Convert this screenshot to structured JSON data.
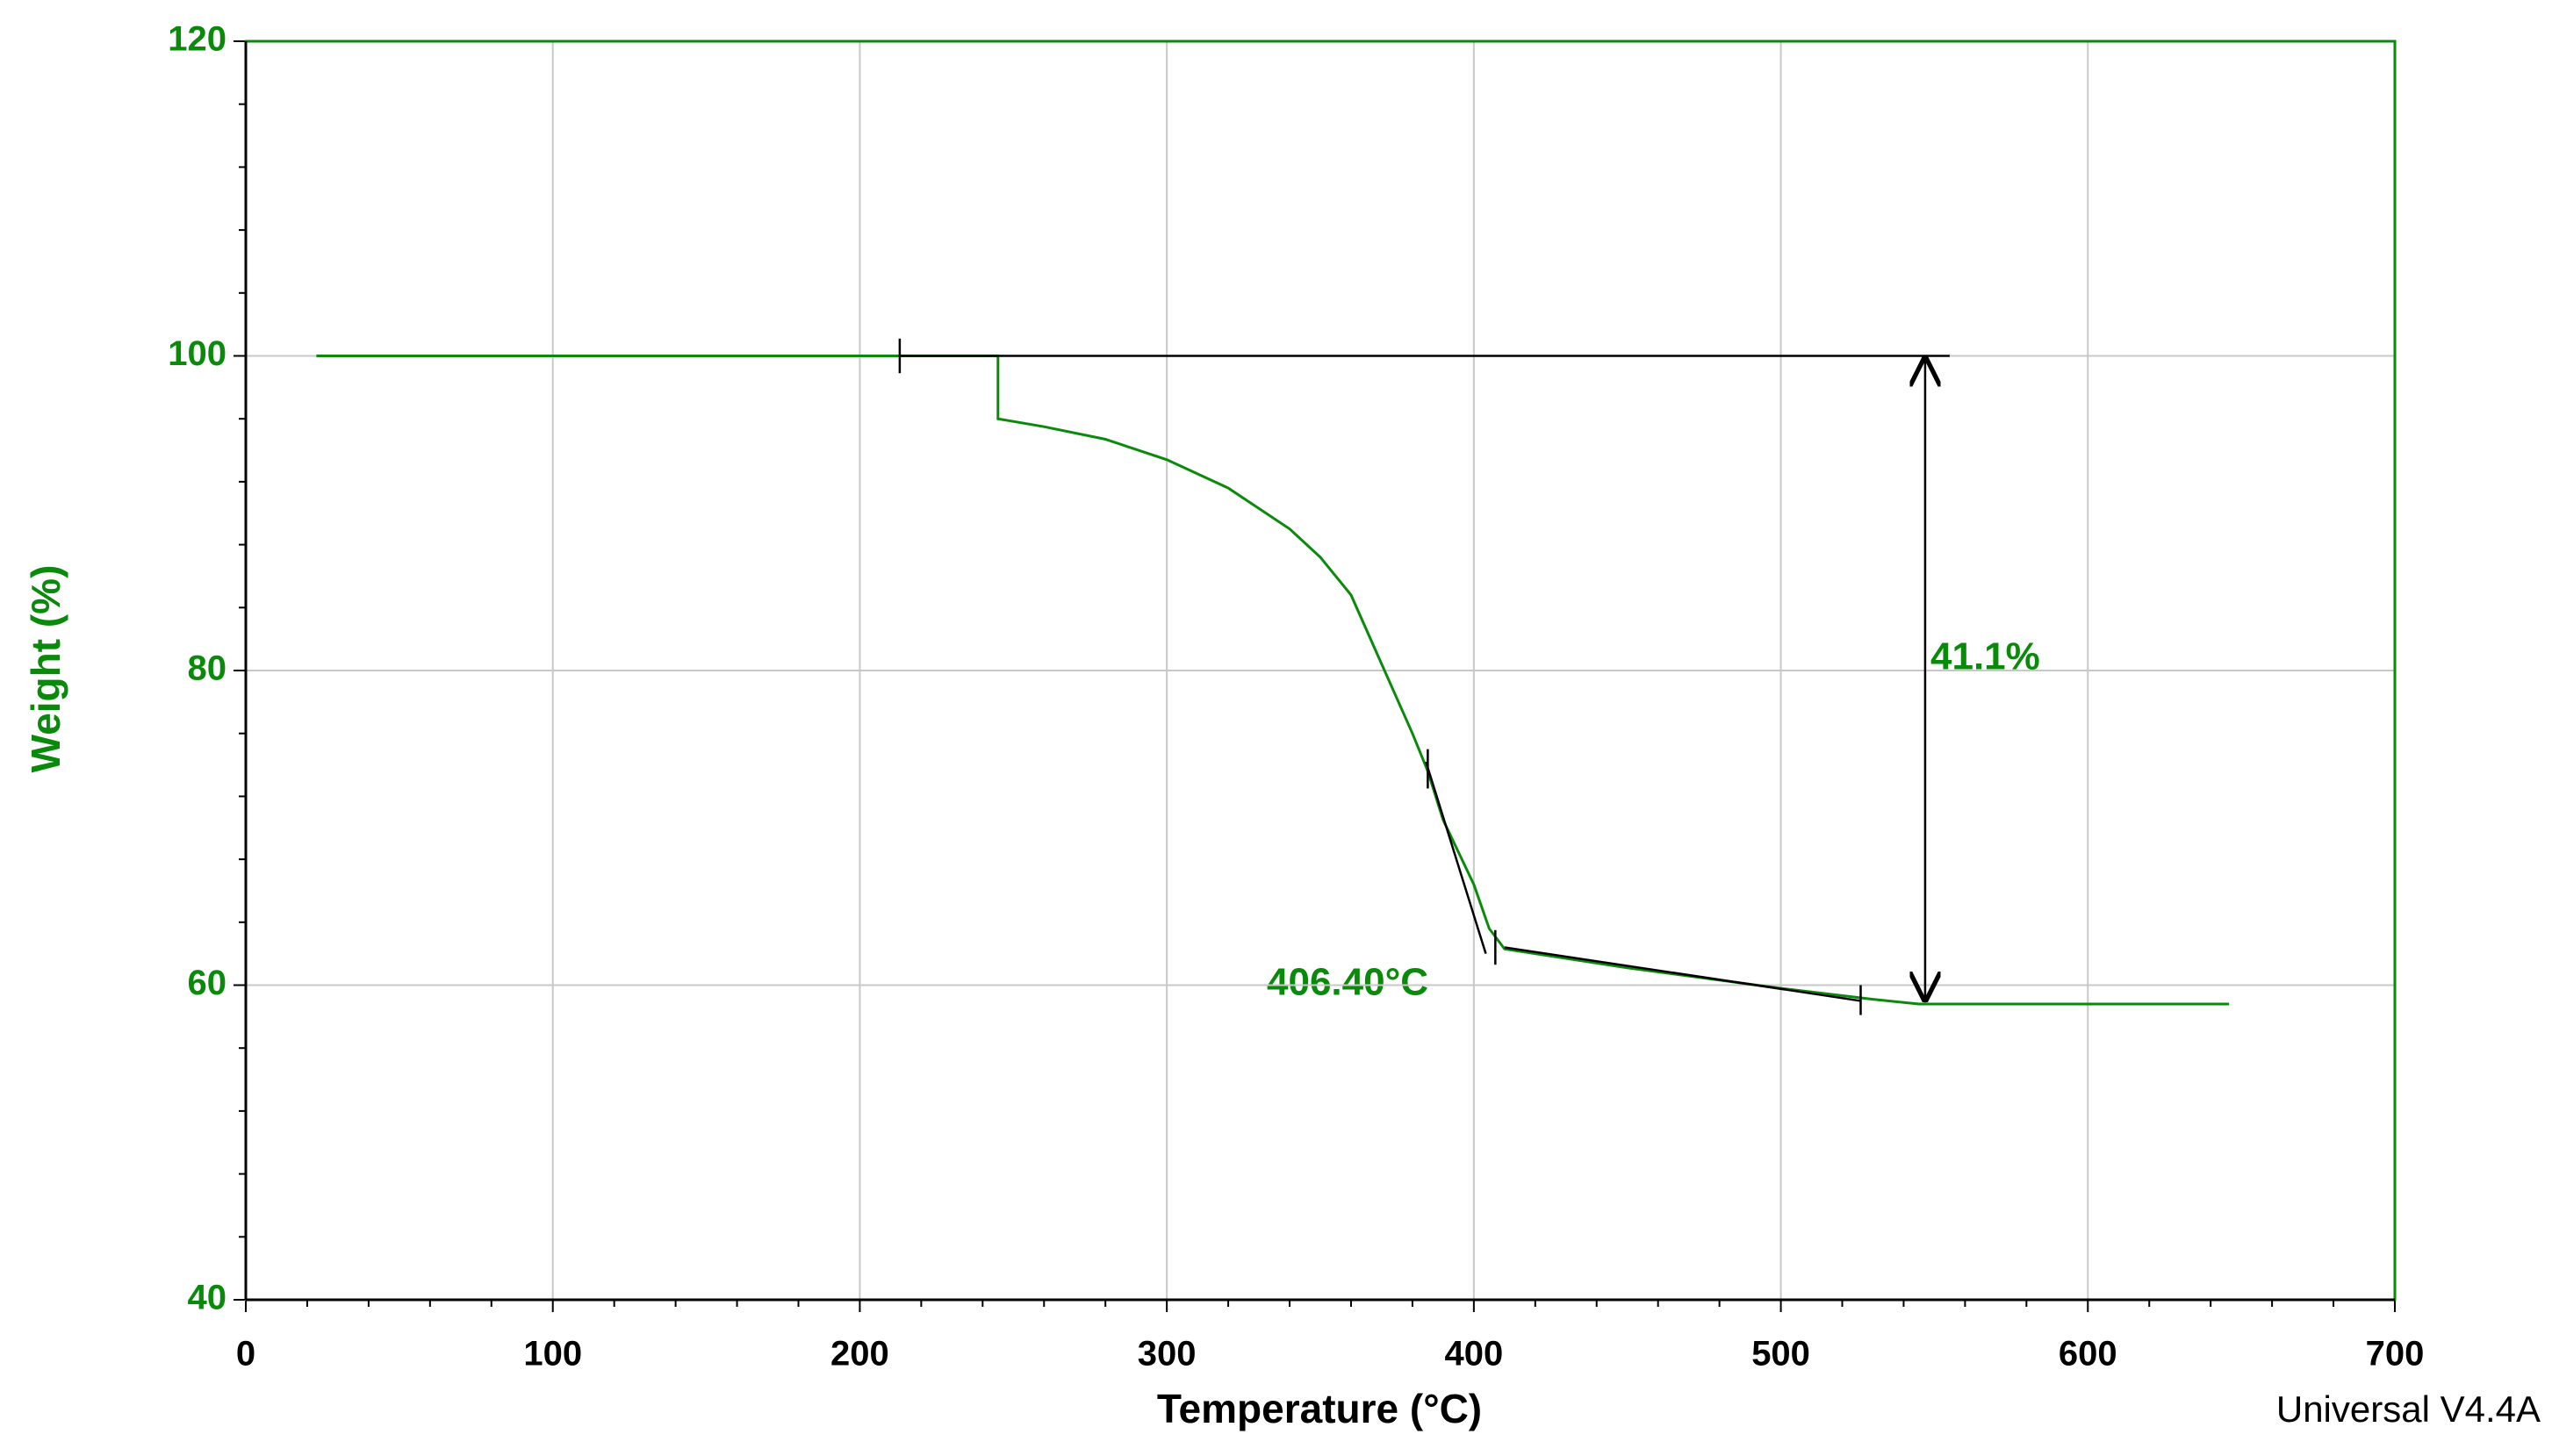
{
  "chart_data": {
    "type": "line",
    "x_label": "Temperature (°C)",
    "y_label": "Weight (%)",
    "footer": "Universal V4.4A",
    "annotations": [
      "41.1%",
      "406.40°C"
    ],
    "color": "#0a8a0a",
    "x_label_color": "#000000",
    "y_label_color": "#0a8a0a",
    "x": [
      23,
      245,
      245,
      260,
      280,
      300,
      320,
      340,
      350,
      360,
      370,
      380,
      385,
      390,
      400,
      405,
      410,
      420,
      450,
      500,
      530,
      545,
      646
    ],
    "values": [
      100,
      100,
      96,
      95.5,
      94.7,
      93.4,
      91.6,
      89,
      87.2,
      84.8,
      80.4,
      76,
      73.6,
      70.5,
      66.4,
      63.6,
      62.3,
      62,
      61.1,
      59.8,
      59.1,
      58.8,
      58.8
    ],
    "xlim": [
      0,
      700
    ],
    "ylim": [
      40,
      120
    ],
    "xticks": [
      0,
      100,
      200,
      300,
      400,
      500,
      600,
      700
    ],
    "yticks": [
      40,
      60,
      80,
      100,
      120
    ],
    "xminorticks": [
      20,
      40,
      60,
      80,
      120,
      140,
      160,
      180,
      220,
      240,
      260,
      280,
      320,
      340,
      360,
      380,
      420,
      440,
      460,
      480,
      520,
      540,
      560,
      580,
      620,
      640,
      660,
      680
    ],
    "yminorticks": [
      44,
      48,
      52,
      56,
      64,
      68,
      72,
      76,
      84,
      88,
      92,
      96,
      104,
      108,
      112,
      116
    ],
    "grid": true,
    "analysis_color": "#000000",
    "analysis_lines": [
      {
        "x": [
          213,
          555
        ],
        "y": [
          100,
          100
        ]
      },
      {
        "x": [
          384.4,
          403.9
        ],
        "y": [
          74.2,
          62
        ]
      },
      {
        "x": [
          410,
          526
        ],
        "y": [
          62.4,
          59
        ]
      },
      {
        "x": [
          213,
          213
        ],
        "y": [
          98.9,
          101.1
        ]
      },
      {
        "x": [
          385,
          385
        ],
        "y": [
          72.5,
          75
        ]
      },
      {
        "x": [
          407,
          407
        ],
        "y": [
          61.3,
          63.5
        ]
      },
      {
        "x": [
          526,
          526
        ],
        "y": [
          58.1,
          60
        ]
      }
    ],
    "arrow": {
      "x": [
        547,
        547
      ],
      "y": [
        100,
        58.9
      ]
    }
  }
}
